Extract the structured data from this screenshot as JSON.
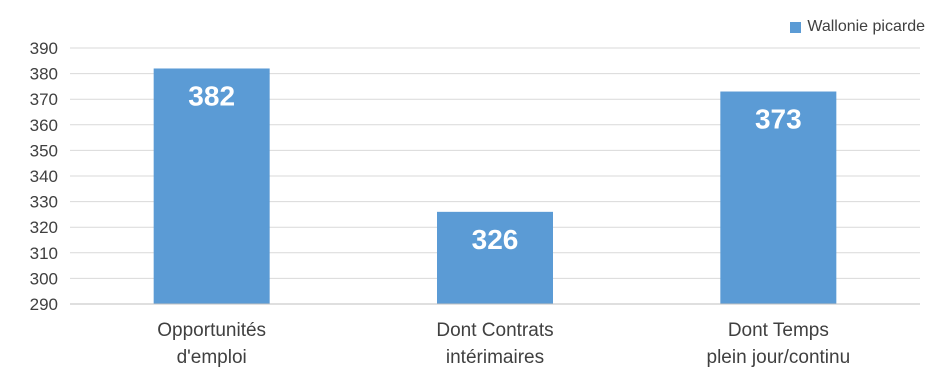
{
  "chart_data": {
    "type": "bar",
    "categories": [
      [
        "Opportunités",
        "d'emploi"
      ],
      [
        "Dont Contrats",
        "intérimaires"
      ],
      [
        "Dont Temps",
        "plein jour/continu"
      ]
    ],
    "series": [
      {
        "name": "Wallonie picarde",
        "values": [
          382,
          326,
          373
        ],
        "color": "#5B9BD5"
      }
    ],
    "data_labels": [
      "382",
      "326",
      "373"
    ],
    "ylim": [
      290,
      390
    ],
    "yticks": [
      290,
      300,
      310,
      320,
      330,
      340,
      350,
      360,
      370,
      380,
      390
    ],
    "grid": true,
    "legend_position": "top-right",
    "title": "",
    "xlabel": "",
    "ylabel": ""
  }
}
